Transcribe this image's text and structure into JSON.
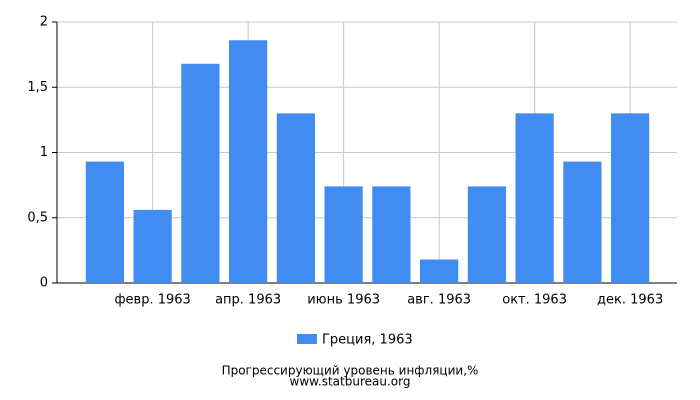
{
  "chart_data": {
    "type": "bar",
    "categories": [
      null,
      "февр. 1963",
      null,
      "апр. 1963",
      null,
      "июнь 1963",
      null,
      "авг. 1963",
      null,
      "окт. 1963",
      null,
      "дек. 1963"
    ],
    "series": [
      {
        "name": "Греция, 1963",
        "color": "#418cf0",
        "values": [
          0.93,
          0.56,
          1.68,
          1.86,
          1.3,
          0.74,
          0.74,
          0.18,
          0.74,
          1.3,
          0.93,
          1.3
        ]
      }
    ],
    "ylim": [
      0,
      2
    ],
    "yticks": [
      0,
      {
        "value": 0.5,
        "label": "0,5"
      },
      1,
      {
        "value": 1.5,
        "label": "1,5"
      },
      2
    ],
    "grid": true,
    "legend": "bottom",
    "footer": [
      "Прогрессирующий уровень инфляции,%",
      "www.statbureau.org"
    ]
  }
}
